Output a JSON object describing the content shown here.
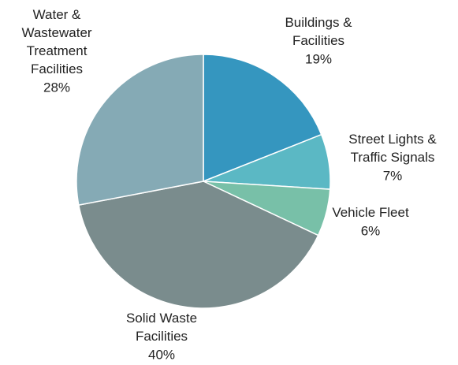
{
  "chart_data": {
    "type": "pie",
    "categories": [
      "Buildings &\nFacilities",
      "Street Lights &\nTraffic Signals",
      "Vehicle Fleet",
      "Solid Waste\nFacilities",
      "Water &\nWastewater\nTreatment\nFacilities"
    ],
    "values": [
      19,
      7,
      6,
      40,
      28
    ],
    "value_labels": [
      "19%",
      "7%",
      "6%",
      "40%",
      "28%"
    ],
    "colors": [
      "#3596bf",
      "#5bb8c4",
      "#78c0a8",
      "#7a8c8d",
      "#85aab5"
    ]
  }
}
